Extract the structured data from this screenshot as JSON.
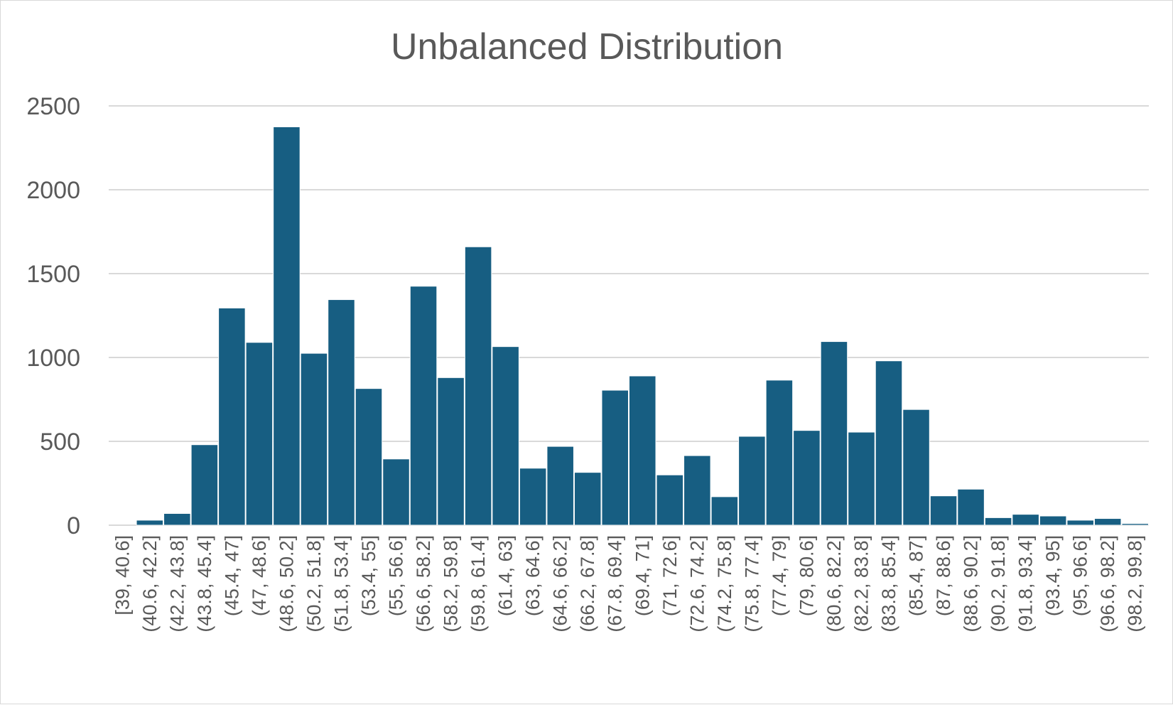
{
  "chart_data": {
    "type": "bar",
    "title": "Unbalanced Distribution",
    "xlabel": "",
    "ylabel": "",
    "ylim": [
      0,
      2500
    ],
    "yticks": [
      0,
      500,
      1000,
      1500,
      2000,
      2500
    ],
    "grid": true,
    "legend": "none",
    "bar_color": "#175e82",
    "grid_color": "#d9d9d9",
    "text_color": "#595959",
    "categories": [
      "[39, 40.6]",
      "(40.6, 42.2]",
      "(42.2, 43.8]",
      "(43.8, 45.4]",
      "(45.4, 47]",
      "(47, 48.6]",
      "(48.6, 50.2]",
      "(50.2, 51.8]",
      "(51.8, 53.4]",
      "(53.4, 55]",
      "(55, 56.6]",
      "(56.6, 58.2]",
      "(58.2, 59.8]",
      "(59.8, 61.4]",
      "(61.4, 63]",
      "(63, 64.6]",
      "(64.6, 66.2]",
      "(66.2, 67.8]",
      "(67.8, 69.4]",
      "(69.4, 71]",
      "(71, 72.6]",
      "(72.6, 74.2]",
      "(74.2, 75.8]",
      "(75.8, 77.4]",
      "(77.4, 79]",
      "(79, 80.6]",
      "(80.6, 82.2]",
      "(82.2, 83.8]",
      "(83.8, 85.4]",
      "(85.4, 87]",
      "(87, 88.6]",
      "(88.6, 90.2]",
      "(90.2, 91.8]",
      "(91.8, 93.4]",
      "(93.4, 95]",
      "(95, 96.6]",
      "(96.6, 98.2]",
      "(98.2, 99.8]"
    ],
    "values": [
      0,
      30,
      70,
      480,
      1295,
      1090,
      2375,
      1025,
      1345,
      815,
      395,
      1425,
      880,
      1660,
      1065,
      340,
      470,
      315,
      805,
      890,
      300,
      415,
      170,
      530,
      865,
      565,
      1095,
      555,
      980,
      690,
      175,
      215,
      45,
      65,
      55,
      30,
      40,
      10
    ]
  }
}
